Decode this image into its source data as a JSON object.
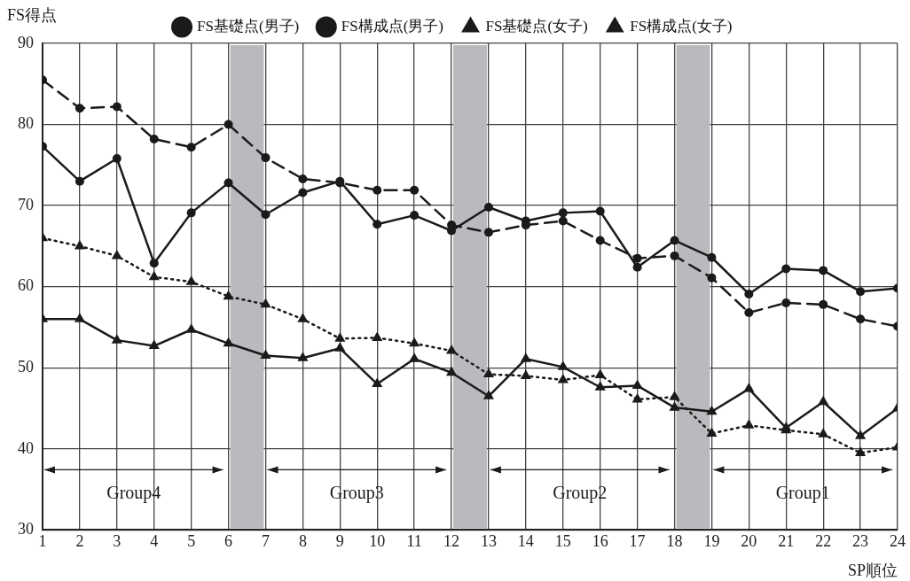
{
  "chart_data": {
    "type": "line",
    "xlabel": "SP順位",
    "ylabel": "FS得点",
    "x": [
      1,
      2,
      3,
      4,
      5,
      6,
      7,
      8,
      9,
      10,
      11,
      12,
      13,
      14,
      15,
      16,
      17,
      18,
      19,
      20,
      21,
      22,
      23,
      24
    ],
    "xlim": [
      1,
      24
    ],
    "xticks": [
      1,
      2,
      3,
      4,
      5,
      6,
      7,
      8,
      9,
      10,
      11,
      12,
      13,
      14,
      15,
      16,
      17,
      18,
      19,
      20,
      21,
      22,
      23,
      24
    ],
    "ylim": [
      30,
      90
    ],
    "yticks": [
      30,
      40,
      50,
      60,
      70,
      80,
      90
    ],
    "grid": true,
    "legend": "top",
    "series": [
      {
        "name": "FS基礎点(男子)",
        "color": "#1a1a1a",
        "marker": "circle",
        "line_style": "solid",
        "values": [
          77.3,
          73,
          75.8,
          62.9,
          69.1,
          72.8,
          68.9,
          71.6,
          73.0,
          67.7,
          68.8,
          66.9,
          69.8,
          68.1,
          69.1,
          69.3,
          62.4,
          65.7,
          63.6,
          59.1,
          62.2,
          62.0,
          59.4,
          59.8
        ]
      },
      {
        "name": "FS構成点(男子)",
        "color": "#1a1a1a",
        "marker": "circle",
        "line_style": "dashed",
        "values": [
          85.5,
          82,
          82.2,
          78.2,
          77.2,
          80,
          75.9,
          73.3,
          72.8,
          71.9,
          71.9,
          67.6,
          66.7,
          67.6,
          68.1,
          65.7,
          63.5,
          63.8,
          61.1,
          56.8,
          58.0,
          57.8,
          56.0,
          55.1
        ]
      },
      {
        "name": "FS基礎点(女子)",
        "color": "#1a1a1a",
        "marker": "triangle",
        "line_style": "solid",
        "values": [
          56,
          56,
          53.4,
          52.7,
          54.7,
          53,
          51.5,
          51.2,
          52.4,
          48,
          51.1,
          49.4,
          46.5,
          51.1,
          50.1,
          47.6,
          47.8,
          45.1,
          44.6,
          47.4,
          42.6,
          45.8,
          41.6,
          45.0
        ]
      },
      {
        "name": "FS構成点(女子)",
        "color": "#1a1a1a",
        "marker": "triangle",
        "line_style": "dotted",
        "values": [
          66,
          65,
          63.8,
          61.2,
          60.6,
          58.8,
          57.8,
          56,
          53.6,
          53.7,
          53,
          52.1,
          49.2,
          49,
          48.5,
          49.1,
          46.1,
          46.4,
          41.9,
          42.9,
          42.3,
          41.8,
          39.5,
          40.2
        ]
      }
    ],
    "bands": [
      {
        "axis": "x",
        "from": 6,
        "to": 7,
        "color": "#b9babd"
      },
      {
        "axis": "x",
        "from": 12,
        "to": 13,
        "color": "#b9babd"
      },
      {
        "axis": "x",
        "from": 18,
        "to": 19,
        "color": "#b9babd"
      }
    ],
    "annotations": [
      "Group4",
      "Group3",
      "Group2",
      "Group1"
    ]
  }
}
